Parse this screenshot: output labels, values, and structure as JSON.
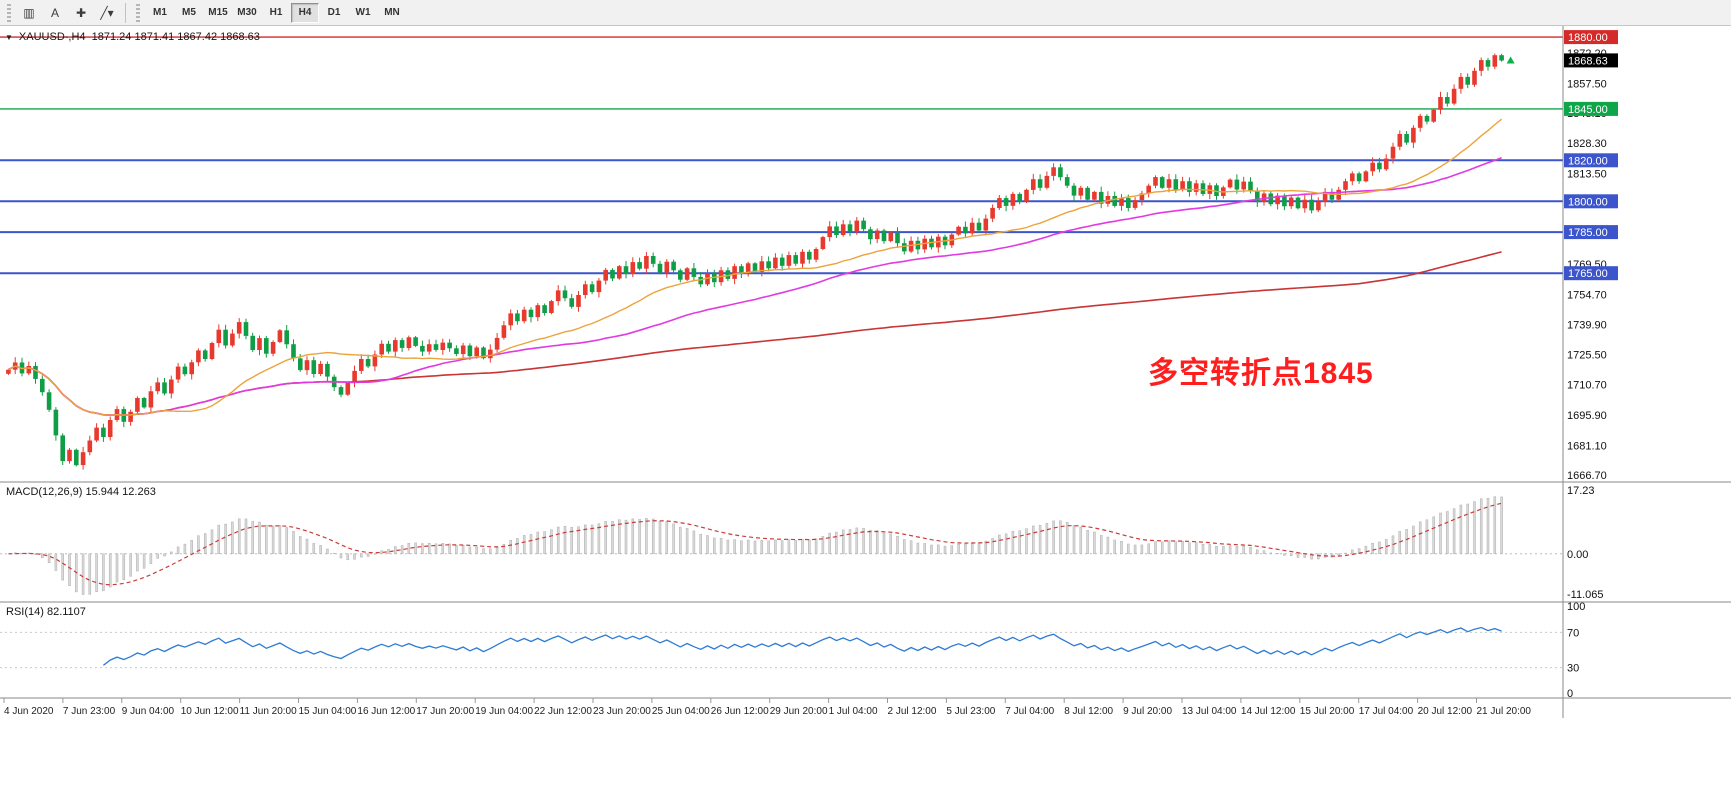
{
  "toolbar": {
    "tools": [
      {
        "name": "charts-icon",
        "glyph": "▥"
      },
      {
        "name": "text-label-tool",
        "glyph": "A"
      },
      {
        "name": "crosshair-tool",
        "glyph": "✚"
      },
      {
        "name": "line-studies-dropdown",
        "glyph": "╱▾"
      }
    ],
    "timeframes": [
      "M1",
      "M5",
      "M15",
      "M30",
      "H1",
      "H4",
      "D1",
      "W1",
      "MN"
    ],
    "active_timeframe": "H4"
  },
  "chart": {
    "symbol_line": "XAUUSD-,H4  1871.24 1871.41 1867.42 1868.63",
    "annotation": {
      "text": "多空转折点1845",
      "color": "#fe1e1e"
    },
    "current_price": {
      "label": "1868.63",
      "price": 1868.63,
      "badge_color": "#000000"
    },
    "levels": [
      {
        "label": "1880.00",
        "price": 1880.0,
        "color": "#d42a2a"
      },
      {
        "label": "1845.00",
        "price": 1845.0,
        "color": "#0fa64a"
      },
      {
        "label": "1820.00",
        "price": 1820.0,
        "color": "#3c55cc"
      },
      {
        "label": "1800.00",
        "price": 1800.0,
        "color": "#3c55cc"
      },
      {
        "label": "1785.00",
        "price": 1785.0,
        "color": "#3c55cc"
      },
      {
        "label": "1765.00",
        "price": 1765.0,
        "color": "#3c55cc"
      }
    ],
    "axis_ticks": [
      {
        "label": "1872.20",
        "price": 1872.2
      },
      {
        "label": "1857.50",
        "price": 1857.5
      },
      {
        "label": "1843.10",
        "price": 1843.1
      },
      {
        "label": "1828.30",
        "price": 1828.3
      },
      {
        "label": "1813.50",
        "price": 1813.5
      },
      {
        "label": "1769.50",
        "price": 1769.5
      },
      {
        "label": "1754.70",
        "price": 1754.7
      },
      {
        "label": "1739.90",
        "price": 1739.9
      },
      {
        "label": "1725.50",
        "price": 1725.5
      },
      {
        "label": "1710.70",
        "price": 1710.7
      },
      {
        "label": "1695.90",
        "price": 1695.9
      },
      {
        "label": "1681.10",
        "price": 1681.1
      },
      {
        "label": "1666.70",
        "price": 1666.7
      }
    ],
    "time_labels": [
      "4 Jun 2020",
      "7 Jun 23:00",
      "9 Jun 04:00",
      "10 Jun 12:00",
      "11 Jun 20:00",
      "15 Jun 04:00",
      "16 Jun 12:00",
      "17 Jun 20:00",
      "19 Jun 04:00",
      "22 Jun 12:00",
      "23 Jun 20:00",
      "25 Jun 04:00",
      "26 Jun 12:00",
      "29 Jun 20:00",
      "1 Jul 04:00",
      "2 Jul 12:00",
      "5 Jul 23:00",
      "7 Jul 04:00",
      "8 Jul 12:00",
      "9 Jul 20:00",
      "13 Jul 04:00",
      "14 Jul 12:00",
      "15 Jul 20:00",
      "17 Jul 04:00",
      "20 Jul 12:00",
      "21 Jul 20:00"
    ]
  },
  "macd": {
    "label": "MACD(12,26,9)",
    "values": "15.944 12.263",
    "axis_labels": [
      "17.23",
      "0.00",
      "-11.065"
    ],
    "axis_max": 17.23,
    "axis_min": -11.065
  },
  "rsi": {
    "label": "RSI(14)",
    "value": "82.1107",
    "axis_labels": [
      "100",
      "70",
      "30",
      "0"
    ],
    "guide_levels": [
      70,
      30
    ]
  },
  "colors": {
    "bull": "#e8392e",
    "bear": "#0f9d45",
    "ma_fast": "#eda33b",
    "ma_mid": "#e23ae2",
    "ma_slow": "#c93535",
    "macd_hist_fill": "#d9d9d9",
    "macd_hist_stroke": "#aeaeae",
    "macd_signal": "#cc3a3a",
    "rsi_line": "#2e7bd6",
    "axis_line": "#8a8a8a",
    "level_blue": "#3c55cc"
  },
  "chart_data": {
    "type": "candlestick",
    "symbol": "XAUUSD",
    "timeframe": "H4",
    "visible_range": {
      "from": "4 Jun 2020",
      "to": "21 Jul 2020 20:00"
    },
    "last_candle": {
      "open": 1871.24,
      "high": 1871.41,
      "low": 1867.42,
      "close": 1868.63
    },
    "price_axis": {
      "min_label": 1666.7,
      "max_label": 1880.0
    },
    "horizontal_levels": [
      1880.0,
      1845.0,
      1820.0,
      1800.0,
      1785.0,
      1765.0
    ],
    "moving_averages": [
      {
        "name": "fast",
        "period": 24
      },
      {
        "name": "mid",
        "period": 50
      },
      {
        "name": "slow",
        "period": 200
      }
    ],
    "indicators": {
      "macd": {
        "fast": 12,
        "slow": 26,
        "signal": 9,
        "current": [
          15.944,
          12.263
        ]
      },
      "rsi": {
        "period": 14,
        "current": 82.1107
      }
    },
    "closes": [
      1718.0,
      1721.5,
      1716.2,
      1719.8,
      1713.5,
      1707.0,
      1698.5,
      1686.0,
      1673.5,
      1679.0,
      1671.5,
      1677.8,
      1683.5,
      1689.8,
      1685.2,
      1693.5,
      1698.8,
      1692.6,
      1697.5,
      1704.2,
      1699.6,
      1707.5,
      1711.8,
      1706.4,
      1713.2,
      1719.5,
      1715.8,
      1721.6,
      1727.4,
      1723.2,
      1731.0,
      1737.5,
      1729.8,
      1735.6,
      1741.2,
      1734.5,
      1727.6,
      1733.4,
      1725.8,
      1731.5,
      1737.2,
      1730.4,
      1723.5,
      1717.8,
      1722.6,
      1715.9,
      1720.8,
      1714.6,
      1709.5,
      1705.8,
      1711.6,
      1717.4,
      1723.2,
      1719.6,
      1725.4,
      1730.6,
      1726.8,
      1732.4,
      1728.6,
      1733.8,
      1729.6,
      1726.8,
      1730.4,
      1727.6,
      1731.2,
      1728.4,
      1725.6,
      1729.8,
      1724.6,
      1728.8,
      1723.6,
      1727.8,
      1733.5,
      1739.6,
      1745.4,
      1741.6,
      1747.2,
      1743.6,
      1749.4,
      1745.6,
      1751.4,
      1756.6,
      1752.8,
      1748.6,
      1754.4,
      1759.6,
      1755.8,
      1761.4,
      1766.6,
      1762.4,
      1768.4,
      1764.6,
      1770.4,
      1767.2,
      1773.4,
      1769.6,
      1765.4,
      1770.6,
      1766.4,
      1761.8,
      1767.4,
      1763.2,
      1759.6,
      1764.8,
      1760.6,
      1766.4,
      1762.2,
      1768.4,
      1764.6,
      1769.8,
      1765.6,
      1770.8,
      1767.4,
      1772.6,
      1768.6,
      1773.8,
      1769.6,
      1775.4,
      1771.6,
      1776.8,
      1782.6,
      1787.8,
      1783.6,
      1788.8,
      1785.4,
      1790.6,
      1786.4,
      1781.6,
      1785.8,
      1780.6,
      1784.8,
      1779.6,
      1775.6,
      1780.8,
      1776.6,
      1781.8,
      1777.6,
      1782.8,
      1778.6,
      1783.8,
      1787.6,
      1784.4,
      1789.6,
      1785.8,
      1791.6,
      1796.8,
      1801.6,
      1797.8,
      1803.6,
      1799.8,
      1805.6,
      1810.8,
      1806.6,
      1812.4,
      1816.6,
      1811.8,
      1807.6,
      1802.8,
      1806.6,
      1800.8,
      1804.6,
      1798.8,
      1802.6,
      1797.8,
      1801.6,
      1796.8,
      1800.6,
      1803.8,
      1807.6,
      1811.8,
      1806.6,
      1810.8,
      1805.6,
      1809.8,
      1804.6,
      1808.8,
      1803.6,
      1807.8,
      1802.6,
      1806.8,
      1810.6,
      1805.8,
      1809.6,
      1804.8,
      1799.6,
      1803.8,
      1798.6,
      1802.8,
      1797.6,
      1801.8,
      1796.6,
      1800.8,
      1795.6,
      1799.8,
      1804.6,
      1800.8,
      1805.6,
      1809.8,
      1813.6,
      1809.8,
      1814.6,
      1818.8,
      1815.6,
      1820.8,
      1826.6,
      1832.8,
      1828.6,
      1835.8,
      1841.6,
      1838.8,
      1844.6,
      1850.8,
      1847.6,
      1854.8,
      1860.6,
      1856.8,
      1863.6,
      1868.8,
      1865.6,
      1871.2,
      1868.6
    ]
  }
}
